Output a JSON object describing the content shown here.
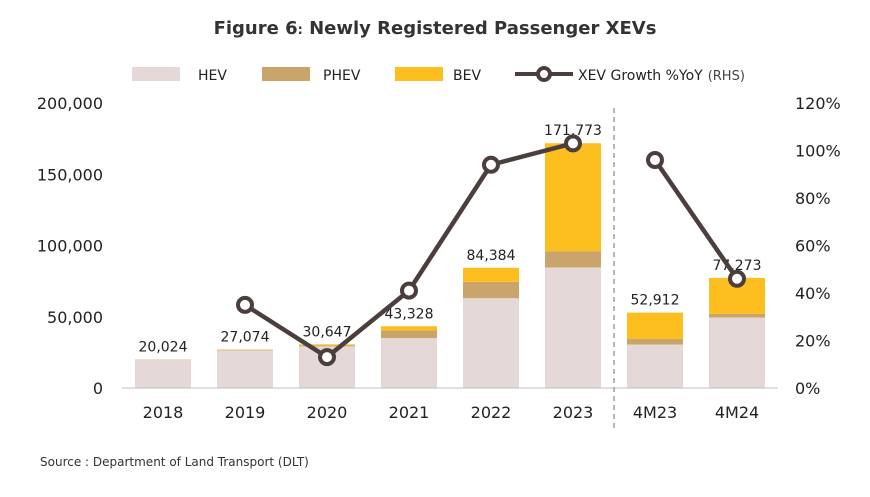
{
  "chart_data": {
    "type": "bar",
    "title_prefix": "Figure 6",
    "title_colon": ":",
    "title_main": "Newly Registered Passenger XEVs",
    "categories": [
      "2018",
      "2019",
      "2020",
      "2021",
      "2022",
      "2023",
      "4M23",
      "4M24"
    ],
    "series": [
      {
        "name": "HEV",
        "color": "#e4d9d6",
        "values": [
          19800,
          26400,
          29200,
          35000,
          63000,
          84600,
          30500,
          49500
        ]
      },
      {
        "name": "PHEV",
        "color": "#c9a46b",
        "values": [
          200,
          400,
          700,
          5300,
          11500,
          11400,
          3900,
          2500
        ]
      },
      {
        "name": "BEV",
        "color": "#fdbe20",
        "values": [
          24,
          274,
          747,
          3028,
          9884,
          75773,
          18512,
          25273
        ]
      }
    ],
    "totals": [
      "20,024",
      "27,074",
      "30,647",
      "43,328",
      "84,384",
      "171,773",
      "52,912",
      "77,273"
    ],
    "total_values": [
      20024,
      27074,
      30647,
      43328,
      84384,
      171773,
      52912,
      77273
    ],
    "line_series": {
      "name": "XEV Growth %YoY",
      "suffix": "(RHS)",
      "color": "#4a3f3d",
      "segments": [
        {
          "x": [
            "2019",
            "2020",
            "2021",
            "2022",
            "2023"
          ],
          "values": [
            35,
            13,
            41,
            94,
            103
          ]
        },
        {
          "x": [
            "4M23",
            "4M24"
          ],
          "values": [
            96,
            46
          ]
        }
      ]
    },
    "y_left": {
      "ticks": [
        "0",
        "50,000",
        "100,000",
        "150,000",
        "200,000"
      ],
      "min": 0,
      "max": 200000
    },
    "y_right": {
      "ticks": [
        "0%",
        "20%",
        "40%",
        "60%",
        "80%",
        "100%",
        "120%"
      ],
      "min": 0,
      "max": 120
    },
    "divider_between": [
      "2023",
      "4M23"
    ],
    "grid": false,
    "legend_position": "top"
  },
  "source": "Source : Department of Land Transport (DLT)"
}
